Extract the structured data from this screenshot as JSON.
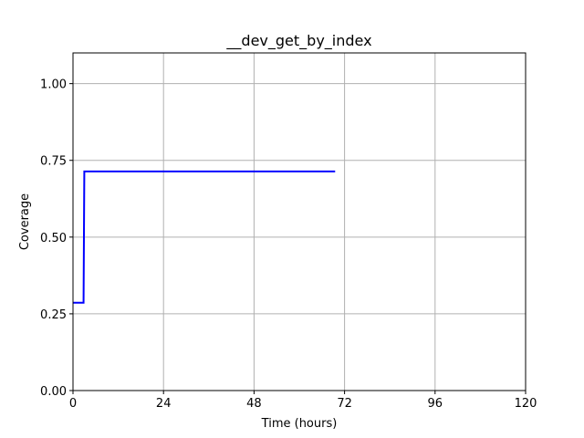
{
  "chart_data": {
    "type": "line",
    "title": "__dev_get_by_index",
    "xlabel": "Time (hours)",
    "ylabel": "Coverage",
    "xlim": [
      0,
      120
    ],
    "ylim": [
      0,
      1.1
    ],
    "xticks": [
      0,
      24,
      48,
      72,
      96,
      120
    ],
    "yticks": [
      0.0,
      0.25,
      0.5,
      0.75,
      1.0
    ],
    "xtick_labels": [
      "0",
      "24",
      "48",
      "72",
      "96",
      "120"
    ],
    "ytick_labels": [
      "0.00",
      "0.25",
      "0.50",
      "0.75",
      "1.00"
    ],
    "grid": true,
    "series": [
      {
        "color": "#0000ff",
        "x": [
          0,
          2.8,
          2.8,
          3.0,
          69.5
        ],
        "y": [
          0.286,
          0.286,
          0.286,
          0.714,
          0.714
        ]
      }
    ]
  }
}
